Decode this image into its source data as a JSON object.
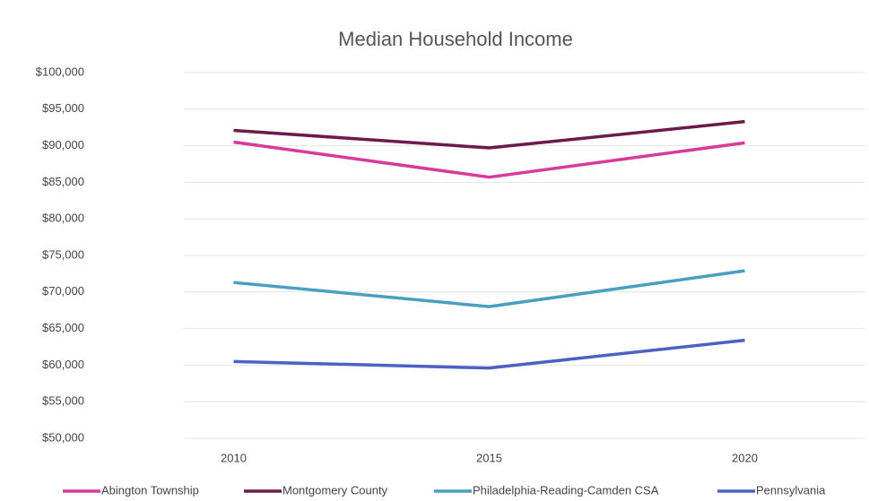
{
  "chart_data": {
    "type": "line",
    "title": "Median Household Income",
    "categories": [
      "2010",
      "2015",
      "2020"
    ],
    "series": [
      {
        "name": "Abington Township",
        "color": "#d63a9b",
        "values": [
          90500,
          85700,
          90400
        ]
      },
      {
        "name": "Montgomery County",
        "color": "#6b1a4a",
        "values": [
          92100,
          89700,
          93300
        ]
      },
      {
        "name": "Philadelphia-Reading-Camden CSA",
        "color": "#4a9fc0",
        "values": [
          71300,
          68000,
          72900
        ]
      },
      {
        "name": "Pennsylvania",
        "color": "#4a62c4",
        "values": [
          60500,
          59600,
          63400
        ]
      }
    ],
    "ylim": [
      50000,
      100000
    ],
    "yticks": [
      {
        "value": 50000,
        "label": "$50,000"
      },
      {
        "value": 55000,
        "label": "$55,000"
      },
      {
        "value": 60000,
        "label": "$60,000"
      },
      {
        "value": 65000,
        "label": "$65,000"
      },
      {
        "value": 70000,
        "label": "$70,000"
      },
      {
        "value": 75000,
        "label": "$75,000"
      },
      {
        "value": 80000,
        "label": "$80,000"
      },
      {
        "value": 85000,
        "label": "$85,000"
      },
      {
        "value": 90000,
        "label": "$90,000"
      },
      {
        "value": 95000,
        "label": "$95,000"
      },
      {
        "value": 100000,
        "label": "$100,000"
      }
    ],
    "grid": true,
    "legend": "bottom"
  }
}
